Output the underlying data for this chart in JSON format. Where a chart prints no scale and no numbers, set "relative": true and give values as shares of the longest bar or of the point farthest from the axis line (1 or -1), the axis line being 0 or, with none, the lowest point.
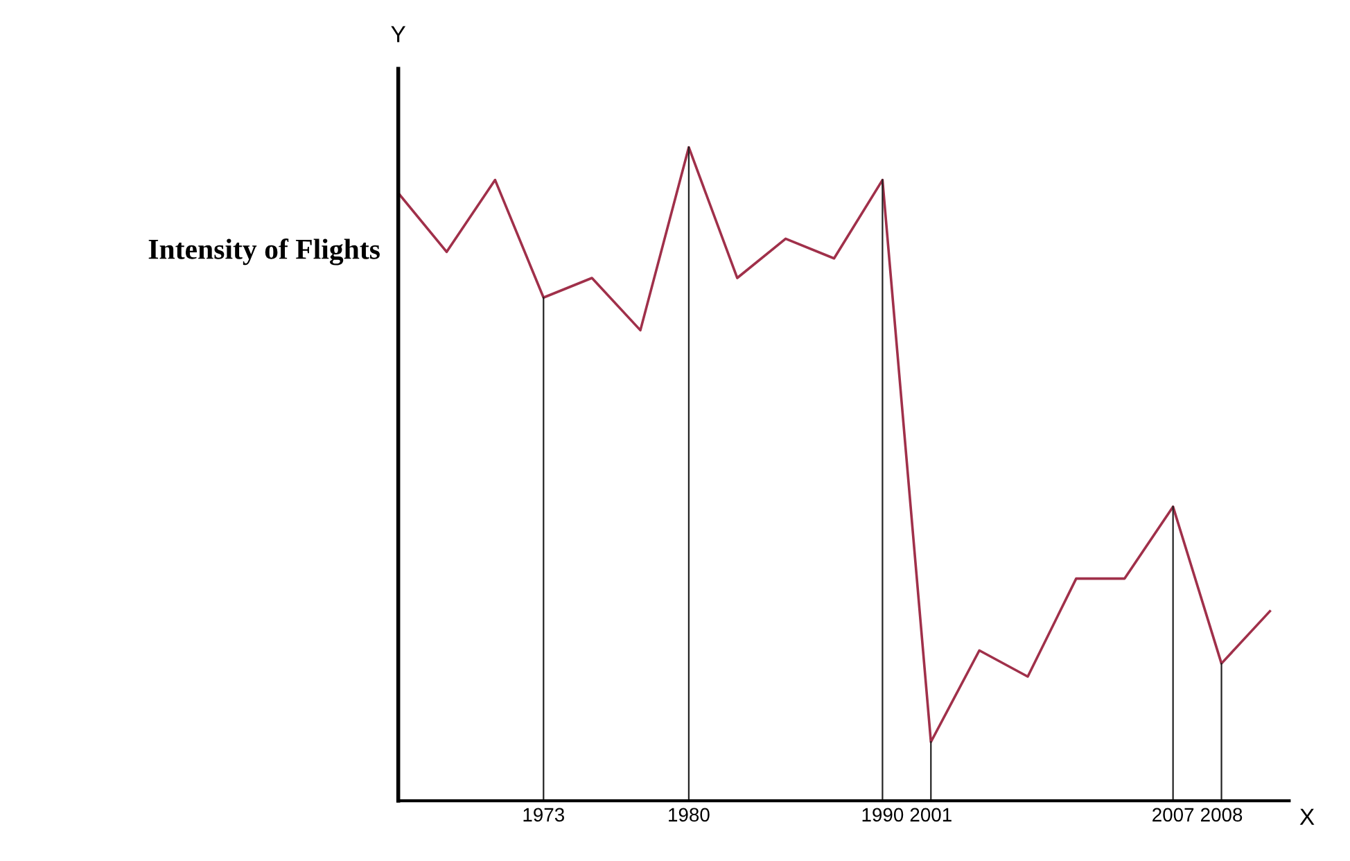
{
  "chart_data": {
    "type": "line",
    "relative": true,
    "xlabel": "X",
    "ylabel": "Intensity of Flights",
    "annotations": [
      "Y"
    ],
    "categories": [
      null,
      null,
      null,
      "1973",
      null,
      null,
      "1980",
      null,
      null,
      null,
      "1990",
      "2001",
      null,
      null,
      null,
      null,
      "2007",
      "2008",
      null
    ],
    "series": [
      {
        "color": "#a0304a",
        "values": [
          0.93,
          0.84,
          0.95,
          0.77,
          0.8,
          0.72,
          1,
          0.8,
          0.86,
          0.83,
          0.95,
          0.09,
          0.23,
          0.19,
          0.34,
          0.34,
          0.45,
          0.21,
          0.29
        ]
      }
    ],
    "ref_lines": [
      {
        "axis": "x",
        "value": "1973"
      },
      {
        "axis": "x",
        "value": "1980"
      },
      {
        "axis": "x",
        "value": "1990"
      },
      {
        "axis": "x",
        "value": "2001"
      },
      {
        "axis": "x",
        "value": "2007"
      },
      {
        "axis": "x",
        "value": "2008"
      }
    ],
    "tick_labels": "x",
    "grid": false,
    "legend": false,
    "marker": "none",
    "line_style": "solid"
  }
}
